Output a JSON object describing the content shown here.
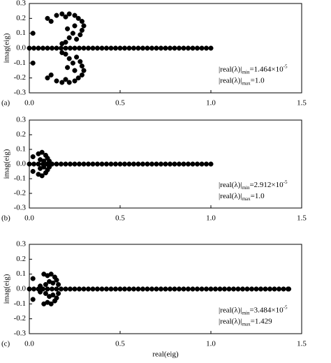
{
  "chart_data": [
    {
      "type": "scatter",
      "panel_label": "(a)",
      "ylabel": "imag(eig)",
      "color": "#000000",
      "xlim": [
        0,
        1.5
      ],
      "ylim": [
        -0.3,
        0.3
      ],
      "xticks": [
        {
          "value": 0,
          "label": "0.0"
        },
        0.5,
        {
          "value": 1,
          "label": "1.0"
        },
        1.5
      ],
      "yticks": [
        0.3,
        0.2,
        0.1,
        {
          "value": 0,
          "label": "0.0"
        },
        -0.1,
        -0.2,
        -0.3
      ],
      "annotations": [
        {
          "text": "|real(λ)|",
          "sub": "min",
          "rest": "=1.464×10",
          "sup": "-5"
        },
        {
          "text": "|real(λ)|",
          "sub": "max",
          "rest": "=1.0"
        }
      ],
      "x": [
        0.02,
        0.02,
        0.1,
        0.1,
        0.12,
        0.12,
        0.15,
        0.15,
        0.18,
        0.18,
        0.2,
        0.2,
        0.22,
        0.22,
        0.25,
        0.25,
        0.27,
        0.27,
        0.29,
        0.29,
        0.3,
        0.3,
        0.29,
        0.29,
        0.28,
        0.28,
        0.26,
        0.26,
        0.24,
        0.24,
        0.22,
        0.22,
        0.2,
        0.2,
        0.18,
        0.18,
        0.25,
        0.25,
        0.21,
        0.21,
        0,
        0.025,
        0.05,
        0.075,
        0.1,
        0.125,
        0.15,
        0.175,
        0.2,
        0.225,
        0.25,
        0.275,
        0.3,
        0.325,
        0.35,
        0.375,
        0.4,
        0.425,
        0.45,
        0.475,
        0.5,
        0.525,
        0.55,
        0.575,
        0.6,
        0.625,
        0.65,
        0.675,
        0.7,
        0.725,
        0.75,
        0.775,
        0.8,
        0.825,
        0.85,
        0.875,
        0.9,
        0.925,
        0.95,
        0.975,
        1.0
      ],
      "values": [
        0.1,
        -0.1,
        0.2,
        -0.2,
        0.18,
        -0.18,
        0.22,
        -0.22,
        0.23,
        -0.23,
        0.21,
        -0.21,
        0.23,
        -0.23,
        0.22,
        -0.22,
        0.2,
        -0.2,
        0.18,
        -0.18,
        0.15,
        -0.15,
        0.12,
        -0.12,
        0.09,
        -0.09,
        0.06,
        -0.06,
        0.1,
        -0.1,
        0.07,
        -0.07,
        0.04,
        -0.04,
        0.03,
        -0.03,
        0.15,
        -0.15,
        0.13,
        -0.13,
        0,
        0,
        0,
        0,
        0,
        0,
        0,
        0,
        0,
        0,
        0,
        0,
        0,
        0,
        0,
        0,
        0,
        0,
        0,
        0,
        0,
        0,
        0,
        0,
        0,
        0,
        0,
        0,
        0,
        0,
        0,
        0,
        0,
        0,
        0,
        0,
        0,
        0,
        0,
        0,
        0
      ]
    },
    {
      "type": "scatter",
      "panel_label": "(b)",
      "ylabel": "imag(eig)",
      "color": "#000000",
      "xlim": [
        0,
        1.5
      ],
      "ylim": [
        -0.3,
        0.3
      ],
      "xticks": [
        {
          "value": 0,
          "label": "0.0"
        },
        0.5,
        {
          "value": 1,
          "label": "1.0"
        },
        1.5
      ],
      "yticks": [
        0.3,
        0.2,
        0.1,
        {
          "value": 0,
          "label": "0.0"
        },
        -0.1,
        -0.2,
        -0.3
      ],
      "annotations": [
        {
          "text": "|real(λ)|",
          "sub": "min",
          "rest": "=2.912×10",
          "sup": "-5"
        },
        {
          "text": "|real(λ)|",
          "sub": "max",
          "rest": "=1.0"
        }
      ],
      "x": [
        0.02,
        0.02,
        0.05,
        0.05,
        0.07,
        0.07,
        0.09,
        0.09,
        0.1,
        0.1,
        0.06,
        0.06,
        0.08,
        0.08,
        0.11,
        0.11,
        0,
        0.025,
        0.05,
        0.075,
        0.1,
        0.125,
        0.15,
        0.175,
        0.2,
        0.225,
        0.25,
        0.275,
        0.3,
        0.325,
        0.35,
        0.375,
        0.4,
        0.425,
        0.45,
        0.475,
        0.5,
        0.525,
        0.55,
        0.575,
        0.6,
        0.625,
        0.65,
        0.675,
        0.7,
        0.725,
        0.75,
        0.775,
        0.8,
        0.825,
        0.85,
        0.875,
        0.9,
        0.925,
        0.95,
        0.975,
        1.0
      ],
      "values": [
        0.05,
        -0.05,
        0.07,
        -0.07,
        0.08,
        -0.08,
        0.06,
        -0.06,
        0.04,
        -0.04,
        0.03,
        -0.03,
        0.02,
        -0.02,
        0.02,
        -0.02,
        0,
        0,
        0,
        0,
        0,
        0,
        0,
        0,
        0,
        0,
        0,
        0,
        0,
        0,
        0,
        0,
        0,
        0,
        0,
        0,
        0,
        0,
        0,
        0,
        0,
        0,
        0,
        0,
        0,
        0,
        0,
        0,
        0,
        0,
        0,
        0,
        0,
        0,
        0,
        0,
        0
      ]
    },
    {
      "type": "scatter",
      "panel_label": "(c)",
      "ylabel": "imag(eig)",
      "xlabel": "real(eig)",
      "color": "#000000",
      "xlim": [
        0,
        1.5
      ],
      "ylim": [
        -0.3,
        0.3
      ],
      "xticks": [
        {
          "value": 0,
          "label": "0.0"
        },
        0.5,
        {
          "value": 1,
          "label": "1.0"
        },
        1.5
      ],
      "yticks": [
        0.3,
        0.2,
        0.1,
        {
          "value": 0,
          "label": "0.0"
        },
        -0.1,
        -0.2,
        -0.3
      ],
      "annotations": [
        {
          "text": "|real(λ)|",
          "sub": "min",
          "rest": "=3.484×10",
          "sup": "-5"
        },
        {
          "text": "|real(λ)|",
          "sub": "max",
          "rest": "=1.429"
        }
      ],
      "x": [
        0.02,
        0.02,
        0.08,
        0.08,
        0.1,
        0.1,
        0.12,
        0.12,
        0.14,
        0.14,
        0.15,
        0.15,
        0.13,
        0.13,
        0.11,
        0.11,
        0.09,
        0.09,
        0.16,
        0.16,
        0.06,
        0.06,
        0,
        0.025,
        0.05,
        0.075,
        0.1,
        0.125,
        0.15,
        0.175,
        0.2,
        0.225,
        0.25,
        0.275,
        0.3,
        0.325,
        0.35,
        0.375,
        0.4,
        0.425,
        0.45,
        0.475,
        0.5,
        0.525,
        0.55,
        0.575,
        0.6,
        0.625,
        0.65,
        0.675,
        0.7,
        0.725,
        0.75,
        0.775,
        0.8,
        0.825,
        0.85,
        0.875,
        0.9,
        0.925,
        0.95,
        0.975,
        1.0,
        1.025,
        1.05,
        1.075,
        1.1,
        1.125,
        1.15,
        1.175,
        1.2,
        1.225,
        1.25,
        1.275,
        1.3,
        1.325,
        1.35,
        1.375,
        1.4,
        1.425,
        1.429
      ],
      "values": [
        0.07,
        -0.07,
        0.1,
        -0.1,
        0.09,
        -0.09,
        0.1,
        -0.1,
        0.08,
        -0.08,
        0.06,
        -0.06,
        0.04,
        -0.04,
        0.05,
        -0.05,
        0.03,
        -0.03,
        0.03,
        -0.03,
        0.02,
        -0.02,
        0,
        0,
        0,
        0,
        0,
        0,
        0,
        0,
        0,
        0,
        0,
        0,
        0,
        0,
        0,
        0,
        0,
        0,
        0,
        0,
        0,
        0,
        0,
        0,
        0,
        0,
        0,
        0,
        0,
        0,
        0,
        0,
        0,
        0,
        0,
        0,
        0,
        0,
        0,
        0,
        0,
        0,
        0,
        0,
        0,
        0,
        0,
        0,
        0,
        0,
        0,
        0,
        0,
        0,
        0,
        0,
        0,
        0,
        0
      ]
    }
  ]
}
